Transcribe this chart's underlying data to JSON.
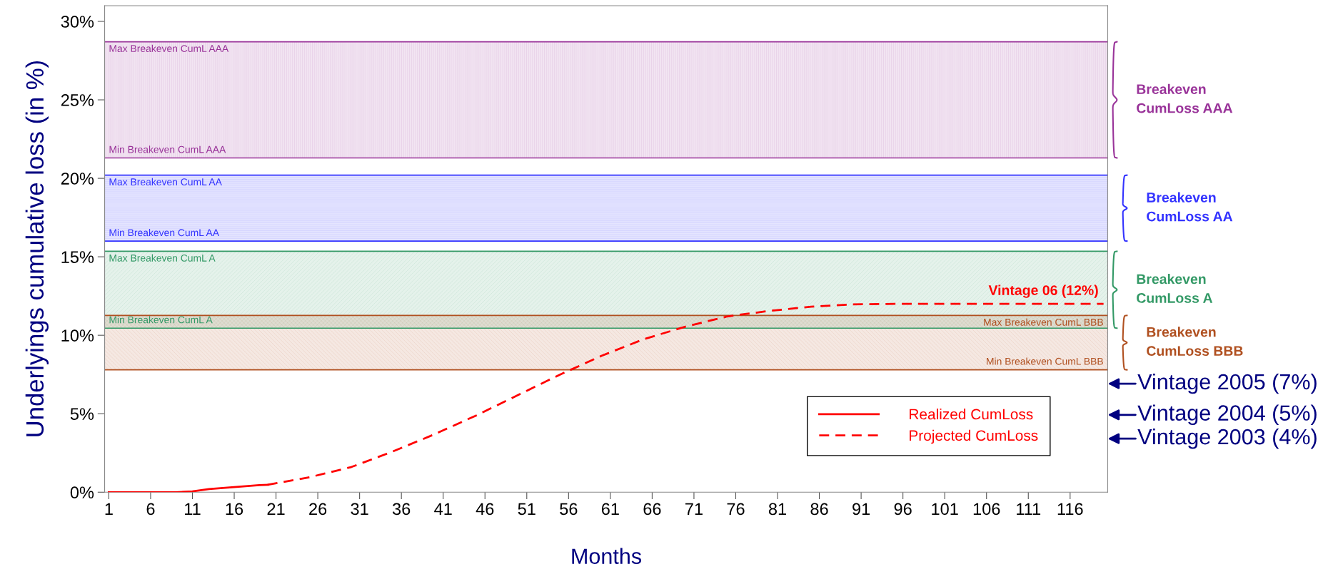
{
  "chart_data": {
    "type": "line",
    "xlabel": "Months",
    "ylabel": "Underlyings cumulative loss (in %)",
    "xlim": [
      0.5,
      120.5
    ],
    "xticks": [
      1,
      6,
      11,
      16,
      21,
      26,
      31,
      36,
      41,
      46,
      51,
      56,
      61,
      66,
      71,
      76,
      81,
      86,
      91,
      96,
      101,
      106,
      111,
      116
    ],
    "ylim": [
      0,
      31
    ],
    "yticks": [
      {
        "value": 0,
        "label": "0%"
      },
      {
        "value": 5,
        "label": "5%"
      },
      {
        "value": 10,
        "label": "10%"
      },
      {
        "value": 15,
        "label": "15%"
      },
      {
        "value": 20,
        "label": "20%"
      },
      {
        "value": 25,
        "label": "25%"
      },
      {
        "value": 30,
        "label": "30%"
      }
    ],
    "series": [
      {
        "name": "Realized CumLoss",
        "color": "#ff0000",
        "line_style": "solid",
        "x": [
          1,
          5,
          9,
          11,
          13,
          16,
          19,
          20
        ],
        "values": [
          0,
          0,
          0,
          0.05,
          0.2,
          0.32,
          0.45,
          0.47
        ]
      },
      {
        "name": "Projected CumLoss",
        "color": "#ff0000",
        "line_style": "dashed",
        "x": [
          20,
          25,
          30,
          35,
          40,
          45,
          50,
          55,
          60,
          65,
          70,
          75,
          80,
          85,
          90,
          95,
          100,
          110,
          120
        ],
        "values": [
          0.47,
          0.95,
          1.6,
          2.6,
          3.7,
          4.9,
          6.2,
          7.5,
          8.7,
          9.75,
          10.55,
          11.2,
          11.55,
          11.82,
          11.97,
          12.0,
          12.0,
          12.0,
          12.0
        ]
      }
    ],
    "bands": [
      {
        "axis": "y",
        "from": 21.3,
        "to": 28.7,
        "label": "Breakeven\nCumLoss AAA",
        "color": "#993399"
      },
      {
        "axis": "y",
        "from": 16.0,
        "to": 20.2,
        "label": "Breakeven\nCumLoss AA",
        "color": "#3333ff"
      },
      {
        "axis": "y",
        "from": 10.45,
        "to": 15.35,
        "label": "Breakeven\nCumLoss A",
        "color": "#339966"
      },
      {
        "axis": "y",
        "from": 7.8,
        "to": 11.26,
        "label": "Breakeven\nCumLoss BBB",
        "color": "#b05020"
      }
    ],
    "ref_lines": [
      {
        "axis": "y",
        "value": 28.7,
        "label": "Max Breakeven CumL AAA",
        "color": "#993399"
      },
      {
        "axis": "y",
        "value": 21.3,
        "label": "Min Breakeven CumL AAA",
        "color": "#993399"
      },
      {
        "axis": "y",
        "value": 20.2,
        "label": "Max Breakeven CumL AA",
        "color": "#3333ff"
      },
      {
        "axis": "y",
        "value": 16.0,
        "label": "Min Breakeven CumL AA",
        "color": "#3333ff"
      },
      {
        "axis": "y",
        "value": 15.35,
        "label": "Max Breakeven CumL A",
        "color": "#339966"
      },
      {
        "axis": "y",
        "value": 10.45,
        "label": "Min Breakeven CumL A",
        "color": "#339966"
      },
      {
        "axis": "y",
        "value": 11.26,
        "label": "Max Breakeven CumL BBB",
        "color": "#b05020"
      },
      {
        "axis": "y",
        "value": 7.8,
        "label": "Min Breakeven CumL BBB",
        "color": "#b05020"
      }
    ],
    "annotations": [
      {
        "text": "Vintage 06 (12%)",
        "x": 120,
        "y": 12
      },
      "Vintage 2005 (7%)",
      "Vintage 2004 (5%)",
      "Vintage 2003 (4%)"
    ],
    "legend": "bottom right",
    "grid": false,
    "marker": "none"
  }
}
